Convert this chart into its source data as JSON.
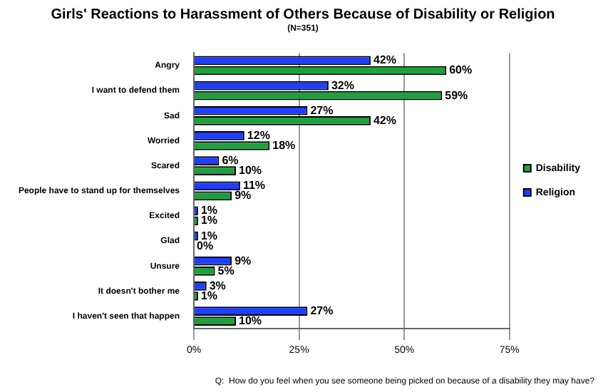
{
  "chart_data": {
    "type": "bar",
    "orientation": "horizontal",
    "title": "Girls' Reactions to Harassment of Others Because of Disability or Religion",
    "subtitle": "(N=351)",
    "categories": [
      "Angry",
      "I want to defend them",
      "Sad",
      "Worried",
      "Scared",
      "People have to stand up for themselves",
      "Excited",
      "Glad",
      "Unsure",
      "It doesn't bother me",
      "I haven't seen that happen"
    ],
    "series": [
      {
        "name": "Religion",
        "color": "#1f3fff",
        "values": [
          42,
          32,
          27,
          12,
          6,
          11,
          1,
          1,
          9,
          3,
          27
        ],
        "value_labels": [
          "42%",
          "32%",
          "27%",
          "12%",
          "6%",
          "11%",
          "1%",
          "1%",
          "9%",
          "3%",
          "27%"
        ]
      },
      {
        "name": "Disability",
        "color": "#1fa03f",
        "values": [
          60,
          59,
          42,
          18,
          10,
          9,
          1,
          0,
          5,
          1,
          10
        ],
        "value_labels": [
          "60%",
          "59%",
          "42%",
          "18%",
          "10%",
          "9%",
          "1%",
          "0%",
          "5%",
          "1%",
          "10%"
        ]
      }
    ],
    "xlim": [
      0,
      75
    ],
    "xticks": [
      {
        "value": 0,
        "label": "0%"
      },
      {
        "value": 25,
        "label": "25%"
      },
      {
        "value": 50,
        "label": "50%"
      },
      {
        "value": 75,
        "label": "75%"
      }
    ],
    "grid": "x",
    "legend": "right",
    "annotations": [
      "Q:  How do you feel when you see someone being picked on because of a disability they may have?"
    ]
  }
}
